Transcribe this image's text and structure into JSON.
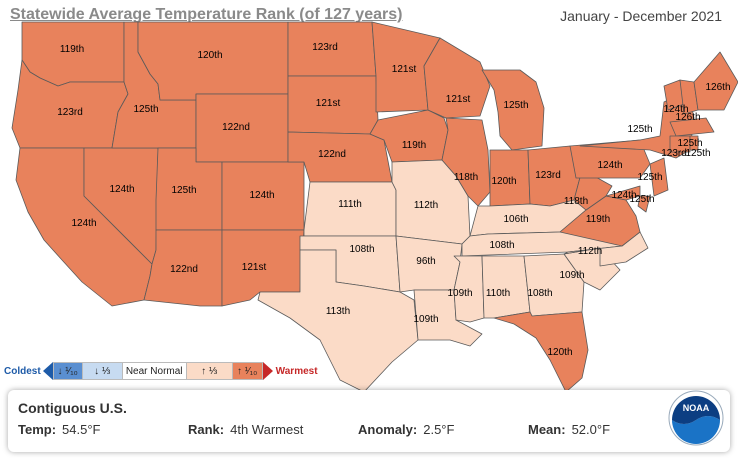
{
  "header": {
    "title": "Statewide Average Temperature Rank (of 127 years)",
    "date_range": "January - December 2021"
  },
  "colors": {
    "much_above": "#e8825c",
    "above": "#fbdbc7",
    "warmest_marker": "#c62828",
    "coldest_marker": "#1e5ba8"
  },
  "legend": {
    "coldest_label": "Coldest",
    "coldest_segment": "↓ ¹⁄₁₀",
    "below_segment": "↓ ⅓",
    "near_normal": "Near Normal",
    "above_segment": "↑ ⅓",
    "warmest_segment": "↑ ¹⁄₁₀",
    "warmest_label": "Warmest"
  },
  "summary": {
    "region": "Contiguous U.S.",
    "temp_label": "Temp:",
    "temp_value": "54.5°F",
    "rank_label": "Rank:",
    "rank_value": "4th Warmest",
    "anomaly_label": "Anomaly:",
    "anomaly_value": "2.5°F",
    "mean_label": "Mean:",
    "mean_value": "52.0°F"
  },
  "logo": {
    "text": "NOAA",
    "icon": "noaa-logo-icon"
  },
  "states": [
    {
      "id": "WA",
      "rank": "119th",
      "cat": "much_above"
    },
    {
      "id": "OR",
      "rank": "123rd",
      "cat": "much_above"
    },
    {
      "id": "CA",
      "rank": "124th",
      "cat": "much_above"
    },
    {
      "id": "NV",
      "rank": "124th",
      "cat": "much_above"
    },
    {
      "id": "ID",
      "rank": "125th",
      "cat": "much_above"
    },
    {
      "id": "MT",
      "rank": "120th",
      "cat": "much_above"
    },
    {
      "id": "WY",
      "rank": "122nd",
      "cat": "much_above"
    },
    {
      "id": "UT",
      "rank": "125th",
      "cat": "much_above"
    },
    {
      "id": "AZ",
      "rank": "122nd",
      "cat": "much_above"
    },
    {
      "id": "CO",
      "rank": "124th",
      "cat": "much_above"
    },
    {
      "id": "NM",
      "rank": "121st",
      "cat": "much_above"
    },
    {
      "id": "ND",
      "rank": "123rd",
      "cat": "much_above"
    },
    {
      "id": "SD",
      "rank": "121st",
      "cat": "much_above"
    },
    {
      "id": "NE",
      "rank": "122nd",
      "cat": "much_above"
    },
    {
      "id": "KS",
      "rank": "111th",
      "cat": "above"
    },
    {
      "id": "OK",
      "rank": "108th",
      "cat": "above"
    },
    {
      "id": "TX",
      "rank": "113th",
      "cat": "above"
    },
    {
      "id": "MN",
      "rank": "121st",
      "cat": "much_above"
    },
    {
      "id": "IA",
      "rank": "119th",
      "cat": "much_above"
    },
    {
      "id": "MO",
      "rank": "112th",
      "cat": "above"
    },
    {
      "id": "AR",
      "rank": "96th",
      "cat": "above"
    },
    {
      "id": "LA",
      "rank": "109th",
      "cat": "above"
    },
    {
      "id": "WI",
      "rank": "121st",
      "cat": "much_above"
    },
    {
      "id": "IL",
      "rank": "118th",
      "cat": "much_above"
    },
    {
      "id": "MI",
      "rank": "125th",
      "cat": "much_above"
    },
    {
      "id": "IN",
      "rank": "120th",
      "cat": "much_above"
    },
    {
      "id": "OH",
      "rank": "123rd",
      "cat": "much_above"
    },
    {
      "id": "KY",
      "rank": "106th",
      "cat": "above"
    },
    {
      "id": "TN",
      "rank": "108th",
      "cat": "above"
    },
    {
      "id": "MS",
      "rank": "109th",
      "cat": "above"
    },
    {
      "id": "AL",
      "rank": "110th",
      "cat": "above"
    },
    {
      "id": "GA",
      "rank": "108th",
      "cat": "above"
    },
    {
      "id": "FL",
      "rank": "120th",
      "cat": "much_above"
    },
    {
      "id": "SC",
      "rank": "109th",
      "cat": "above"
    },
    {
      "id": "NC",
      "rank": "112th",
      "cat": "above"
    },
    {
      "id": "VA",
      "rank": "119th",
      "cat": "much_above"
    },
    {
      "id": "WV",
      "rank": "118th",
      "cat": "much_above"
    },
    {
      "id": "PA",
      "rank": "124th",
      "cat": "much_above"
    },
    {
      "id": "NY",
      "rank": "125th",
      "cat": "much_above"
    },
    {
      "id": "VT",
      "rank": "124th",
      "cat": "much_above"
    },
    {
      "id": "NH",
      "rank": "126th",
      "cat": "much_above"
    },
    {
      "id": "ME",
      "rank": "126th",
      "cat": "much_above"
    },
    {
      "id": "MA",
      "rank": "125th",
      "cat": "much_above"
    },
    {
      "id": "CT",
      "rank": "123rd",
      "cat": "much_above"
    },
    {
      "id": "RI",
      "rank": "125th",
      "cat": "much_above"
    },
    {
      "id": "NJ",
      "rank": "125th",
      "cat": "much_above"
    },
    {
      "id": "DE",
      "rank": "125th",
      "cat": "much_above"
    },
    {
      "id": "MD",
      "rank": "124th",
      "cat": "much_above"
    }
  ]
}
